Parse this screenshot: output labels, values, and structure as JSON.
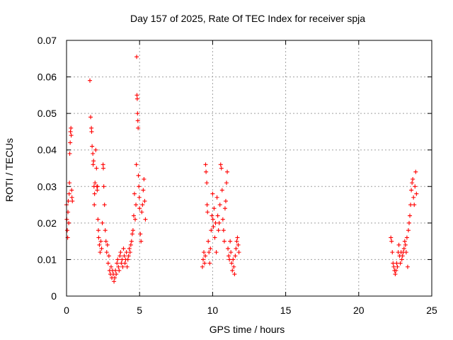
{
  "chart_data": {
    "type": "scatter",
    "title": "Day 157 of 2025, Rate Of TEC Index for receiver spja",
    "xlabel": "GPS time / hours",
    "ylabel": "ROTI / TECUs",
    "xlim": [
      0,
      25
    ],
    "ylim": [
      0,
      0.07
    ],
    "xticks": [
      0,
      5,
      10,
      15,
      20,
      25
    ],
    "xtick_labels": [
      "0",
      "5",
      "10",
      "15",
      "20",
      "25"
    ],
    "yticks": [
      0,
      0.01,
      0.02,
      0.03,
      0.04,
      0.05,
      0.06,
      0.07
    ],
    "ytick_labels": [
      "0",
      "0.01",
      "0.02",
      "0.03",
      "0.04",
      "0.05",
      "0.06",
      "0.07"
    ],
    "grid": true,
    "marker": "+",
    "color": "#ff0000",
    "series": [
      {
        "points": [
          [
            0.0,
            0.025
          ],
          [
            0.02,
            0.021
          ],
          [
            0.05,
            0.018
          ],
          [
            0.08,
            0.016
          ],
          [
            0.1,
            0.023
          ],
          [
            0.12,
            0.026
          ],
          [
            0.15,
            0.02
          ],
          [
            0.18,
            0.028
          ],
          [
            0.2,
            0.031
          ],
          [
            0.22,
            0.039
          ],
          [
            0.25,
            0.042
          ],
          [
            0.27,
            0.045
          ],
          [
            0.3,
            0.046
          ],
          [
            0.32,
            0.044
          ],
          [
            0.35,
            0.029
          ],
          [
            0.37,
            0.027
          ],
          [
            0.4,
            0.026
          ],
          [
            1.6,
            0.059
          ],
          [
            1.65,
            0.049
          ],
          [
            1.7,
            0.046
          ],
          [
            1.72,
            0.045
          ],
          [
            1.75,
            0.041
          ],
          [
            1.8,
            0.039
          ],
          [
            1.82,
            0.036
          ],
          [
            1.85,
            0.037
          ],
          [
            1.88,
            0.03
          ],
          [
            1.9,
            0.025
          ],
          [
            1.92,
            0.028
          ],
          [
            1.95,
            0.031
          ],
          [
            2.0,
            0.04
          ],
          [
            2.05,
            0.035
          ],
          [
            2.08,
            0.03
          ],
          [
            2.1,
            0.029
          ],
          [
            2.12,
            0.03
          ],
          [
            2.15,
            0.021
          ],
          [
            2.18,
            0.018
          ],
          [
            2.2,
            0.016
          ],
          [
            2.25,
            0.014
          ],
          [
            2.3,
            0.012
          ],
          [
            2.35,
            0.015
          ],
          [
            2.4,
            0.013
          ],
          [
            2.45,
            0.02
          ],
          [
            2.5,
            0.036
          ],
          [
            2.52,
            0.035
          ],
          [
            2.55,
            0.03
          ],
          [
            2.6,
            0.025
          ],
          [
            2.65,
            0.018
          ],
          [
            2.7,
            0.015
          ],
          [
            2.75,
            0.012
          ],
          [
            2.8,
            0.014
          ],
          [
            2.85,
            0.009
          ],
          [
            2.9,
            0.011
          ],
          [
            2.95,
            0.007
          ],
          [
            3.0,
            0.006
          ],
          [
            3.05,
            0.008
          ],
          [
            3.1,
            0.005
          ],
          [
            3.15,
            0.007
          ],
          [
            3.2,
            0.006
          ],
          [
            3.25,
            0.004
          ],
          [
            3.3,
            0.005
          ],
          [
            3.35,
            0.007
          ],
          [
            3.4,
            0.006
          ],
          [
            3.45,
            0.009
          ],
          [
            3.5,
            0.01
          ],
          [
            3.55,
            0.008
          ],
          [
            3.6,
            0.007
          ],
          [
            3.65,
            0.011
          ],
          [
            3.7,
            0.012
          ],
          [
            3.75,
            0.009
          ],
          [
            3.8,
            0.01
          ],
          [
            3.85,
            0.008
          ],
          [
            3.9,
            0.013
          ],
          [
            3.95,
            0.011
          ],
          [
            4.0,
            0.009
          ],
          [
            4.05,
            0.01
          ],
          [
            4.1,
            0.012
          ],
          [
            4.15,
            0.008
          ],
          [
            4.2,
            0.01
          ],
          [
            4.25,
            0.011
          ],
          [
            4.3,
            0.013
          ],
          [
            4.35,
            0.012
          ],
          [
            4.4,
            0.014
          ],
          [
            4.45,
            0.015
          ],
          [
            4.5,
            0.017
          ],
          [
            4.55,
            0.018
          ],
          [
            4.6,
            0.022
          ],
          [
            4.65,
            0.028
          ],
          [
            4.7,
            0.021
          ],
          [
            4.75,
            0.025
          ],
          [
            4.78,
            0.036
          ],
          [
            4.8,
            0.0655
          ],
          [
            4.82,
            0.055
          ],
          [
            4.84,
            0.054
          ],
          [
            4.86,
            0.05
          ],
          [
            4.88,
            0.048
          ],
          [
            4.9,
            0.046
          ],
          [
            4.92,
            0.033
          ],
          [
            4.95,
            0.03
          ],
          [
            4.98,
            0.027
          ],
          [
            5.0,
            0.024
          ],
          [
            5.05,
            0.017
          ],
          [
            5.1,
            0.015
          ],
          [
            5.15,
            0.023
          ],
          [
            5.2,
            0.025
          ],
          [
            5.25,
            0.029
          ],
          [
            5.3,
            0.032
          ],
          [
            5.35,
            0.026
          ],
          [
            5.4,
            0.021
          ],
          [
            9.3,
            0.008
          ],
          [
            9.35,
            0.01
          ],
          [
            9.4,
            0.012
          ],
          [
            9.45,
            0.009
          ],
          [
            9.5,
            0.011
          ],
          [
            9.52,
            0.036
          ],
          [
            9.55,
            0.034
          ],
          [
            9.6,
            0.031
          ],
          [
            9.62,
            0.025
          ],
          [
            9.65,
            0.023
          ],
          [
            9.7,
            0.015
          ],
          [
            9.75,
            0.012
          ],
          [
            9.8,
            0.009
          ],
          [
            9.85,
            0.013
          ],
          [
            9.9,
            0.018
          ],
          [
            9.95,
            0.022
          ],
          [
            10.0,
            0.028
          ],
          [
            10.02,
            0.021
          ],
          [
            10.05,
            0.019
          ],
          [
            10.1,
            0.024
          ],
          [
            10.15,
            0.016
          ],
          [
            10.2,
            0.02
          ],
          [
            10.25,
            0.012
          ],
          [
            10.3,
            0.027
          ],
          [
            10.35,
            0.022
          ],
          [
            10.4,
            0.018
          ],
          [
            10.45,
            0.02
          ],
          [
            10.5,
            0.025
          ],
          [
            10.55,
            0.036
          ],
          [
            10.6,
            0.035
          ],
          [
            10.65,
            0.029
          ],
          [
            10.7,
            0.021
          ],
          [
            10.75,
            0.018
          ],
          [
            10.8,
            0.015
          ],
          [
            10.85,
            0.024
          ],
          [
            10.9,
            0.026
          ],
          [
            10.95,
            0.031
          ],
          [
            11.0,
            0.034
          ],
          [
            11.05,
            0.013
          ],
          [
            11.1,
            0.011
          ],
          [
            11.15,
            0.01
          ],
          [
            11.2,
            0.015
          ],
          [
            11.25,
            0.012
          ],
          [
            11.3,
            0.009
          ],
          [
            11.35,
            0.007
          ],
          [
            11.4,
            0.01
          ],
          [
            11.45,
            0.008
          ],
          [
            11.5,
            0.006
          ],
          [
            11.55,
            0.011
          ],
          [
            11.6,
            0.013
          ],
          [
            11.65,
            0.015
          ],
          [
            11.7,
            0.016
          ],
          [
            11.75,
            0.014
          ],
          [
            11.8,
            0.012
          ],
          [
            22.2,
            0.016
          ],
          [
            22.25,
            0.015
          ],
          [
            22.3,
            0.012
          ],
          [
            22.35,
            0.009
          ],
          [
            22.4,
            0.008
          ],
          [
            22.45,
            0.007
          ],
          [
            22.5,
            0.006
          ],
          [
            22.55,
            0.007
          ],
          [
            22.6,
            0.009
          ],
          [
            22.65,
            0.008
          ],
          [
            22.7,
            0.012
          ],
          [
            22.75,
            0.014
          ],
          [
            22.8,
            0.011
          ],
          [
            22.85,
            0.009
          ],
          [
            22.9,
            0.012
          ],
          [
            22.95,
            0.01
          ],
          [
            23.0,
            0.011
          ],
          [
            23.05,
            0.012
          ],
          [
            23.1,
            0.013
          ],
          [
            23.15,
            0.015
          ],
          [
            23.2,
            0.014
          ],
          [
            23.25,
            0.012
          ],
          [
            23.3,
            0.016
          ],
          [
            23.35,
            0.008
          ],
          [
            23.4,
            0.018
          ],
          [
            23.45,
            0.02
          ],
          [
            23.5,
            0.022
          ],
          [
            23.55,
            0.025
          ],
          [
            23.6,
            0.029
          ],
          [
            23.65,
            0.031
          ],
          [
            23.7,
            0.032
          ],
          [
            23.75,
            0.027
          ],
          [
            23.8,
            0.025
          ],
          [
            23.85,
            0.03
          ],
          [
            23.9,
            0.034
          ],
          [
            23.95,
            0.028
          ]
        ]
      }
    ]
  }
}
